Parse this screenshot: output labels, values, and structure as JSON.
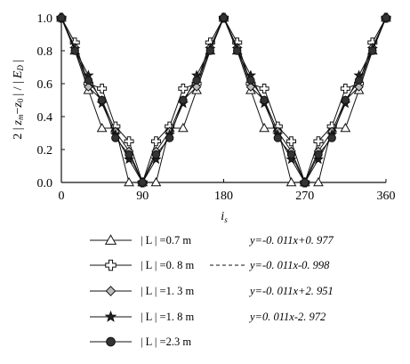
{
  "chart_data": {
    "type": "line",
    "ylabel": "2 | z_m - z_0 | / | E_D |",
    "ylabel_parts": {
      "a": "2 |",
      "b": "z",
      "c": "m",
      "d": "−",
      "e": "z",
      "f": "0",
      "g": "| / |",
      "h": "E",
      "i": "D",
      "j": "|"
    },
    "xlabel": "i_s",
    "xlabel_parts": {
      "main": "i",
      "sub": "s"
    },
    "xlim": [
      0,
      360
    ],
    "ylim": [
      0,
      1.0
    ],
    "xticks": [
      "0",
      "90",
      "180",
      "270",
      "360"
    ],
    "yticks": [
      "0.0",
      "0.2",
      "0.4",
      "0.6",
      "0.8",
      "1.0"
    ],
    "x": [
      0,
      15,
      30,
      45,
      60,
      75,
      90,
      105,
      120,
      135,
      150,
      165,
      180,
      195,
      210,
      225,
      240,
      255,
      270,
      285,
      300,
      315,
      330,
      345,
      360
    ],
    "series": [
      {
        "name": "| L | =0.7 m",
        "marker": "triangle",
        "values": [
          1.0,
          0.8,
          0.56,
          0.33,
          0.33,
          0.0,
          0.0,
          0.0,
          0.33,
          0.33,
          0.56,
          0.8,
          1.0,
          0.8,
          0.56,
          0.33,
          0.33,
          0.0,
          0.0,
          0.0,
          0.33,
          0.33,
          0.56,
          0.8,
          1.0
        ]
      },
      {
        "name": "| L | =0. 8 m",
        "marker": "cross",
        "values": [
          1.0,
          0.85,
          0.6,
          0.57,
          0.34,
          0.25,
          0.0,
          0.25,
          0.34,
          0.57,
          0.6,
          0.85,
          1.0,
          0.85,
          0.6,
          0.57,
          0.34,
          0.25,
          0.0,
          0.25,
          0.34,
          0.57,
          0.6,
          0.85,
          1.0
        ]
      },
      {
        "name": "| L | =1. 3 m",
        "marker": "diamond",
        "values": [
          1.0,
          0.82,
          0.58,
          0.5,
          0.31,
          0.19,
          0.0,
          0.19,
          0.31,
          0.5,
          0.58,
          0.82,
          1.0,
          0.82,
          0.58,
          0.5,
          0.31,
          0.19,
          0.0,
          0.19,
          0.31,
          0.5,
          0.58,
          0.82,
          1.0
        ]
      },
      {
        "name": "| L | =1. 8 m",
        "marker": "star",
        "values": [
          1.0,
          0.81,
          0.65,
          0.48,
          0.29,
          0.14,
          0.0,
          0.14,
          0.29,
          0.48,
          0.65,
          0.81,
          1.0,
          0.81,
          0.65,
          0.48,
          0.29,
          0.14,
          0.0,
          0.14,
          0.29,
          0.48,
          0.65,
          0.81,
          1.0
        ]
      },
      {
        "name": "| L | =2.3 m",
        "marker": "circle",
        "values": [
          1.0,
          0.8,
          0.62,
          0.5,
          0.27,
          0.17,
          0.0,
          0.17,
          0.27,
          0.5,
          0.62,
          0.8,
          1.0,
          0.8,
          0.62,
          0.5,
          0.27,
          0.17,
          0.0,
          0.17,
          0.27,
          0.5,
          0.62,
          0.8,
          1.0
        ]
      }
    ],
    "fit_equations": [
      "y=-0. 011x+0. 977",
      "y=-0. 011x-0. 998",
      "y=-0. 011x+2. 951",
      "y=0. 011x-2. 972"
    ],
    "grid": false,
    "legend_position": "bottom"
  }
}
